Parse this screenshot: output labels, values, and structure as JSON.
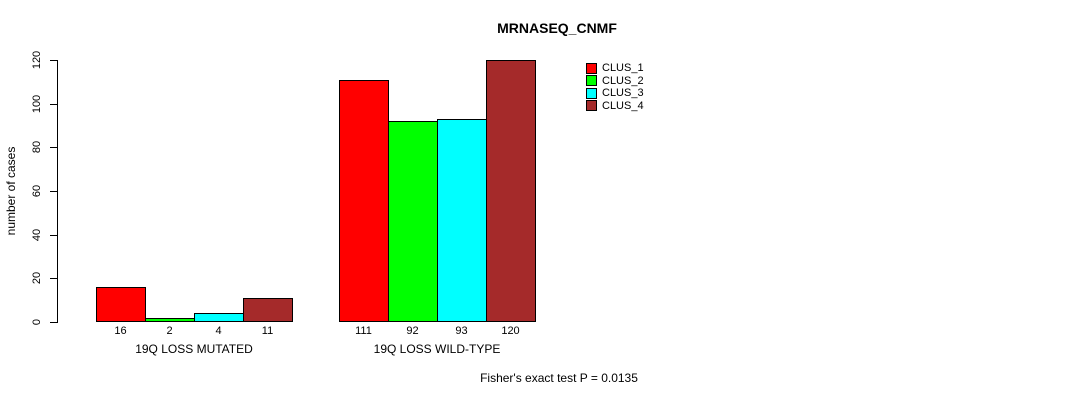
{
  "figure": {
    "background": "#ffffff",
    "text_color": "#000000"
  },
  "chart_data": {
    "type": "bar",
    "title": "MRNASEQ_CNMF",
    "xlabel": "",
    "ylabel": "number of cases",
    "categories": [
      "19Q LOSS MUTATED",
      "19Q LOSS WILD-TYPE"
    ],
    "series": [
      {
        "name": "CLUS_1",
        "color": "#FF0000",
        "values": [
          16,
          111
        ]
      },
      {
        "name": "CLUS_2",
        "color": "#00FF00",
        "values": [
          2,
          92
        ]
      },
      {
        "name": "CLUS_3",
        "color": "#00FFFF",
        "values": [
          4,
          93
        ]
      },
      {
        "name": "CLUS_4",
        "color": "#A52A2A",
        "values": [
          11,
          120
        ]
      }
    ],
    "bar_value_labels": [
      [
        16,
        2,
        4,
        11
      ],
      [
        111,
        92,
        93,
        120
      ]
    ],
    "ylim": [
      0,
      120
    ],
    "yticks": [
      0,
      20,
      40,
      60,
      80,
      100,
      120
    ],
    "grid": false,
    "legend_position": "top-right",
    "legend_entries": [
      "CLUS_1",
      "CLUS_2",
      "CLUS_3",
      "CLUS_4"
    ],
    "annotation": "Fisher's exact test P = 0.0135"
  }
}
